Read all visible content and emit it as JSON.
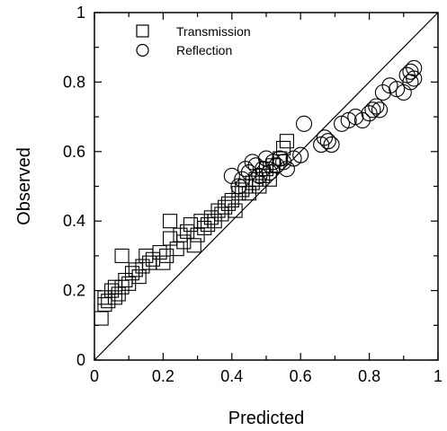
{
  "chart_data": {
    "type": "scatter",
    "xlabel": "Predicted",
    "ylabel": "Observed",
    "xlim": [
      0,
      1
    ],
    "ylim": [
      0,
      1
    ],
    "x_ticks": [
      "0",
      "0.2",
      "0.4",
      "0.6",
      "0.8",
      "1"
    ],
    "y_ticks": [
      "0",
      "0.2",
      "0.4",
      "0.6",
      "0.8",
      "1"
    ],
    "x_tick_values": [
      0,
      0.2,
      0.4,
      0.6,
      0.8,
      1.0
    ],
    "y_tick_values": [
      0,
      0.2,
      0.4,
      0.6,
      0.8,
      1.0
    ],
    "grid": false,
    "legend_position": "top-left",
    "reference_line": {
      "from": [
        0,
        0
      ],
      "to": [
        1,
        1
      ]
    },
    "series": [
      {
        "name": "Transmission",
        "marker": "square",
        "points": [
          [
            0.02,
            0.12
          ],
          [
            0.03,
            0.16
          ],
          [
            0.03,
            0.18
          ],
          [
            0.04,
            0.17
          ],
          [
            0.05,
            0.2
          ],
          [
            0.06,
            0.21
          ],
          [
            0.06,
            0.18
          ],
          [
            0.07,
            0.19
          ],
          [
            0.08,
            0.21
          ],
          [
            0.08,
            0.3
          ],
          [
            0.09,
            0.23
          ],
          [
            0.1,
            0.22
          ],
          [
            0.11,
            0.25
          ],
          [
            0.12,
            0.26
          ],
          [
            0.13,
            0.24
          ],
          [
            0.14,
            0.27
          ],
          [
            0.15,
            0.3
          ],
          [
            0.16,
            0.28
          ],
          [
            0.17,
            0.29
          ],
          [
            0.19,
            0.31
          ],
          [
            0.2,
            0.28
          ],
          [
            0.21,
            0.3
          ],
          [
            0.22,
            0.35
          ],
          [
            0.22,
            0.4
          ],
          [
            0.24,
            0.32
          ],
          [
            0.25,
            0.36
          ],
          [
            0.26,
            0.34
          ],
          [
            0.27,
            0.37
          ],
          [
            0.28,
            0.39
          ],
          [
            0.29,
            0.33
          ],
          [
            0.3,
            0.36
          ],
          [
            0.31,
            0.4
          ],
          [
            0.32,
            0.38
          ],
          [
            0.33,
            0.39
          ],
          [
            0.34,
            0.41
          ],
          [
            0.35,
            0.4
          ],
          [
            0.36,
            0.43
          ],
          [
            0.37,
            0.42
          ],
          [
            0.38,
            0.44
          ],
          [
            0.39,
            0.45
          ],
          [
            0.4,
            0.46
          ],
          [
            0.41,
            0.43
          ],
          [
            0.42,
            0.48
          ],
          [
            0.43,
            0.49
          ],
          [
            0.44,
            0.5
          ],
          [
            0.45,
            0.48
          ],
          [
            0.46,
            0.51
          ],
          [
            0.47,
            0.52
          ],
          [
            0.48,
            0.5
          ],
          [
            0.49,
            0.53
          ],
          [
            0.5,
            0.55
          ],
          [
            0.51,
            0.52
          ],
          [
            0.52,
            0.56
          ],
          [
            0.54,
            0.58
          ],
          [
            0.55,
            0.61
          ],
          [
            0.56,
            0.63
          ]
        ]
      },
      {
        "name": "Reflection",
        "marker": "circle",
        "points": [
          [
            0.4,
            0.53
          ],
          [
            0.42,
            0.5
          ],
          [
            0.43,
            0.52
          ],
          [
            0.44,
            0.55
          ],
          [
            0.45,
            0.54
          ],
          [
            0.46,
            0.57
          ],
          [
            0.47,
            0.56
          ],
          [
            0.48,
            0.53
          ],
          [
            0.49,
            0.55
          ],
          [
            0.5,
            0.58
          ],
          [
            0.51,
            0.54
          ],
          [
            0.52,
            0.57
          ],
          [
            0.53,
            0.56
          ],
          [
            0.54,
            0.58
          ],
          [
            0.55,
            0.57
          ],
          [
            0.56,
            0.55
          ],
          [
            0.58,
            0.58
          ],
          [
            0.6,
            0.59
          ],
          [
            0.61,
            0.68
          ],
          [
            0.66,
            0.62
          ],
          [
            0.67,
            0.64
          ],
          [
            0.68,
            0.63
          ],
          [
            0.69,
            0.62
          ],
          [
            0.72,
            0.68
          ],
          [
            0.74,
            0.69
          ],
          [
            0.76,
            0.7
          ],
          [
            0.78,
            0.69
          ],
          [
            0.8,
            0.71
          ],
          [
            0.81,
            0.72
          ],
          [
            0.82,
            0.73
          ],
          [
            0.83,
            0.72
          ],
          [
            0.84,
            0.77
          ],
          [
            0.86,
            0.79
          ],
          [
            0.88,
            0.78
          ],
          [
            0.9,
            0.77
          ],
          [
            0.91,
            0.82
          ],
          [
            0.92,
            0.83
          ],
          [
            0.93,
            0.84
          ],
          [
            0.93,
            0.81
          ],
          [
            0.92,
            0.8
          ]
        ]
      }
    ]
  },
  "colors": {
    "ink": "#000000",
    "background": "#ffffff"
  }
}
